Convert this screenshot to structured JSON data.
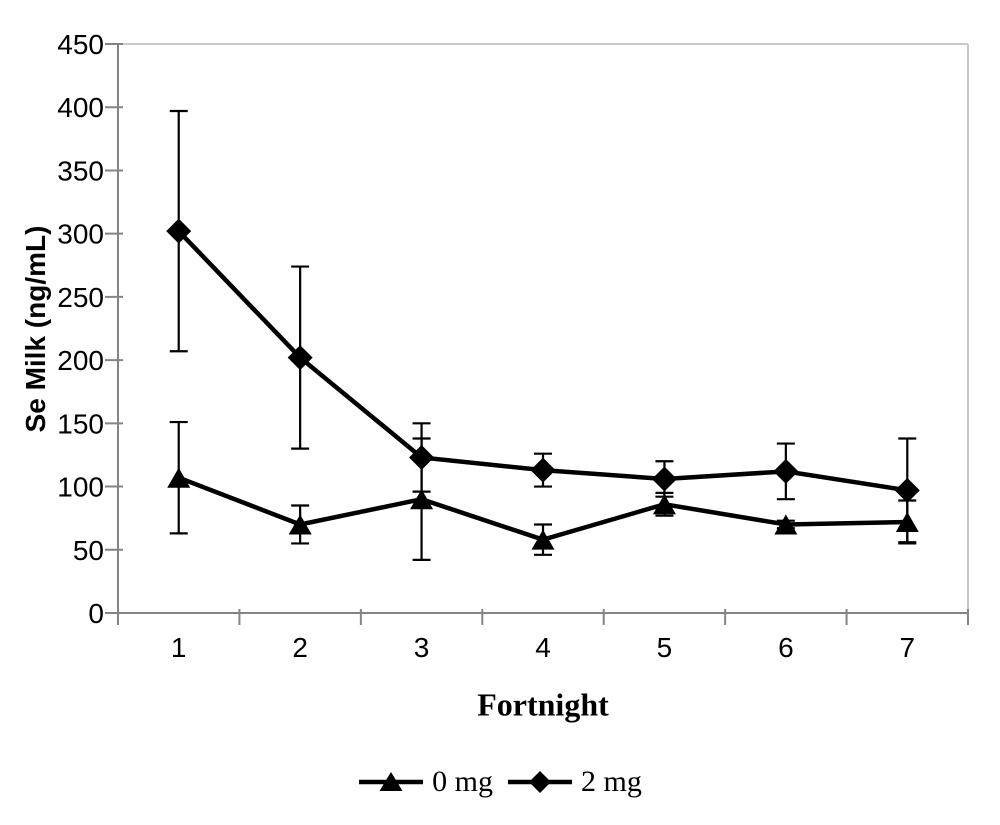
{
  "chart_data": {
    "type": "line",
    "title": "",
    "xlabel": "Fortnight",
    "ylabel": "Se Milk (ng/mL)",
    "categories": [
      "1",
      "2",
      "3",
      "4",
      "5",
      "6",
      "7"
    ],
    "ylim": [
      0,
      450
    ],
    "yticks": [
      0,
      50,
      100,
      150,
      200,
      250,
      300,
      350,
      400,
      450
    ],
    "grid": false,
    "plot_border": "top-right-light-gray",
    "legend_position": "bottom-center",
    "series": [
      {
        "name": "0 mg",
        "marker": "triangle",
        "color": "#000000",
        "values": [
          107,
          70,
          90,
          58,
          86,
          70,
          72
        ],
        "error": [
          44,
          15,
          48,
          12,
          9,
          3,
          17
        ]
      },
      {
        "name": "2 mg",
        "marker": "diamond",
        "color": "#000000",
        "values": [
          302,
          202,
          123,
          113,
          106,
          112,
          97
        ],
        "error": [
          95,
          72,
          27,
          13,
          14,
          22,
          41
        ]
      }
    ]
  },
  "colors": {
    "series": "#000000",
    "axis": "#848484",
    "plot_border": "#c9c9c9",
    "background": "#ffffff",
    "text": "#000000"
  }
}
